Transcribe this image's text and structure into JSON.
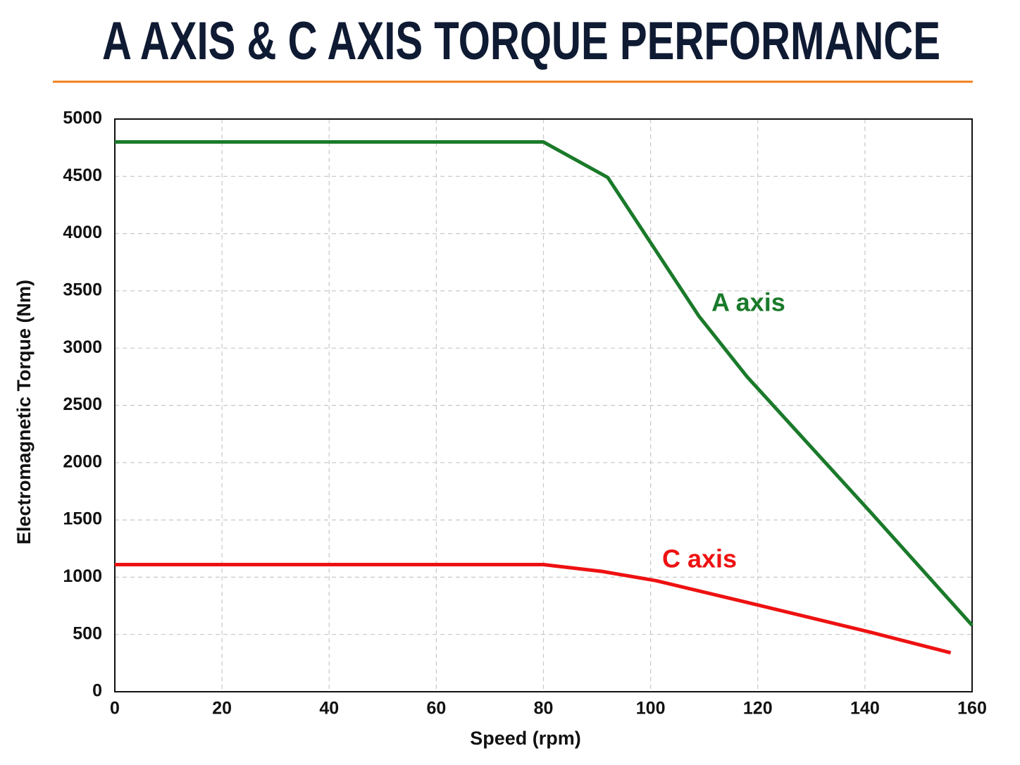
{
  "chart_data": {
    "type": "line",
    "title": "A AXIS & C AXIS TORQUE PERFORMANCE",
    "x_label": "Speed (rpm)",
    "y_label": "Electromagnetic Torque (Nm)",
    "xlim": [
      0,
      160
    ],
    "xticks": [
      0,
      20,
      40,
      60,
      80,
      100,
      120,
      140,
      160
    ],
    "ylim": [
      0,
      5000
    ],
    "yticks": [
      0,
      500,
      1000,
      1500,
      2000,
      2500,
      3000,
      3500,
      4000,
      4500,
      5000
    ],
    "grid": true,
    "series": [
      {
        "name": "A axis",
        "color": "#1a7a2a",
        "x": [
          0,
          80,
          92,
          109,
          118,
          141,
          160
        ],
        "values": [
          4800,
          4800,
          4490,
          3280,
          2750,
          1570,
          580
        ]
      },
      {
        "name": "C axis",
        "color": "#ee1111",
        "x": [
          0,
          80,
          91,
          101,
          118,
          141,
          156
        ],
        "values": [
          1110,
          1110,
          1050,
          970,
          780,
          520,
          340
        ]
      }
    ]
  }
}
